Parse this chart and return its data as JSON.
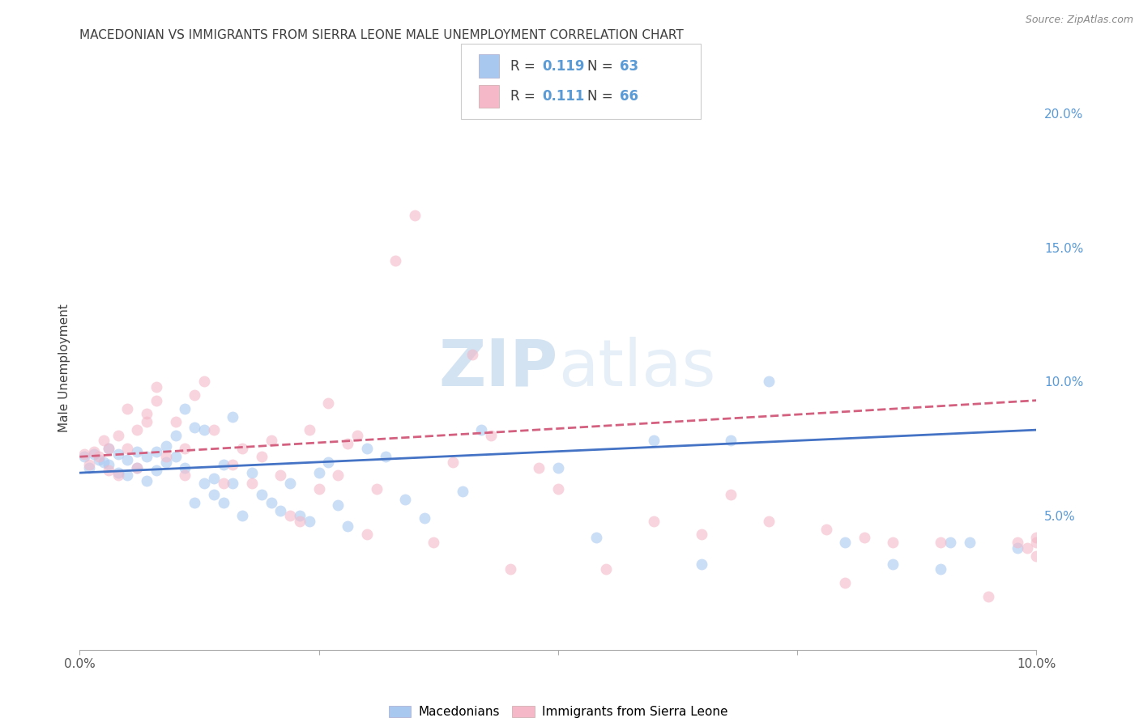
{
  "title": "MACEDONIAN VS IMMIGRANTS FROM SIERRA LEONE MALE UNEMPLOYMENT CORRELATION CHART",
  "source": "Source: ZipAtlas.com",
  "ylabel": "Male Unemployment",
  "watermark_zip": "ZIP",
  "watermark_atlas": "atlas",
  "xlim": [
    0.0,
    0.1
  ],
  "ylim": [
    0.0,
    0.21
  ],
  "legend_r1": "R = ",
  "legend_v1": "0.119",
  "legend_n1_label": "N = ",
  "legend_n1": "63",
  "legend_r2": "R = ",
  "legend_v2": "0.111",
  "legend_n2_label": "N = ",
  "legend_n2": "66",
  "blue_color": "#a8c8f0",
  "pink_color": "#f4b8c8",
  "blue_line_color": "#4472c4",
  "pink_line_color": "#d46080",
  "title_color": "#404040",
  "right_axis_color": "#5b9bd5",
  "legend_text_color": "#5b9bd5",
  "legend_label_color": "#404040",
  "background_color": "#ffffff",
  "grid_color": "#e0e0e0",
  "marker_size": 100,
  "marker_alpha": 0.6,
  "blue_scatter_x": [
    0.0005,
    0.001,
    0.0015,
    0.002,
    0.0025,
    0.003,
    0.003,
    0.004,
    0.004,
    0.005,
    0.005,
    0.006,
    0.006,
    0.007,
    0.007,
    0.008,
    0.008,
    0.009,
    0.009,
    0.01,
    0.01,
    0.011,
    0.011,
    0.012,
    0.012,
    0.013,
    0.013,
    0.014,
    0.014,
    0.015,
    0.015,
    0.016,
    0.016,
    0.017,
    0.018,
    0.019,
    0.02,
    0.021,
    0.022,
    0.023,
    0.024,
    0.025,
    0.026,
    0.027,
    0.028,
    0.03,
    0.032,
    0.034,
    0.036,
    0.04,
    0.042,
    0.05,
    0.054,
    0.06,
    0.065,
    0.068,
    0.072,
    0.08,
    0.085,
    0.09,
    0.091,
    0.093,
    0.098
  ],
  "blue_scatter_y": [
    0.072,
    0.068,
    0.073,
    0.071,
    0.07,
    0.069,
    0.075,
    0.066,
    0.073,
    0.065,
    0.071,
    0.068,
    0.074,
    0.063,
    0.072,
    0.067,
    0.074,
    0.07,
    0.076,
    0.072,
    0.08,
    0.09,
    0.068,
    0.083,
    0.055,
    0.062,
    0.082,
    0.058,
    0.064,
    0.069,
    0.055,
    0.087,
    0.062,
    0.05,
    0.066,
    0.058,
    0.055,
    0.052,
    0.062,
    0.05,
    0.048,
    0.066,
    0.07,
    0.054,
    0.046,
    0.075,
    0.072,
    0.056,
    0.049,
    0.059,
    0.082,
    0.068,
    0.042,
    0.078,
    0.032,
    0.078,
    0.1,
    0.04,
    0.032,
    0.03,
    0.04,
    0.04,
    0.038
  ],
  "pink_scatter_x": [
    0.0005,
    0.001,
    0.0015,
    0.002,
    0.0025,
    0.003,
    0.003,
    0.004,
    0.004,
    0.005,
    0.005,
    0.006,
    0.006,
    0.007,
    0.007,
    0.008,
    0.008,
    0.009,
    0.01,
    0.011,
    0.011,
    0.012,
    0.013,
    0.014,
    0.015,
    0.016,
    0.017,
    0.018,
    0.019,
    0.02,
    0.021,
    0.022,
    0.023,
    0.024,
    0.025,
    0.026,
    0.027,
    0.028,
    0.029,
    0.03,
    0.031,
    0.033,
    0.035,
    0.037,
    0.039,
    0.041,
    0.043,
    0.045,
    0.048,
    0.05,
    0.055,
    0.06,
    0.065,
    0.068,
    0.072,
    0.078,
    0.08,
    0.082,
    0.085,
    0.09,
    0.095,
    0.098,
    0.099,
    0.1,
    0.1,
    0.1
  ],
  "pink_scatter_y": [
    0.073,
    0.069,
    0.074,
    0.072,
    0.078,
    0.067,
    0.075,
    0.065,
    0.08,
    0.075,
    0.09,
    0.068,
    0.082,
    0.088,
    0.085,
    0.093,
    0.098,
    0.072,
    0.085,
    0.065,
    0.075,
    0.095,
    0.1,
    0.082,
    0.062,
    0.069,
    0.075,
    0.062,
    0.072,
    0.078,
    0.065,
    0.05,
    0.048,
    0.082,
    0.06,
    0.092,
    0.065,
    0.077,
    0.08,
    0.043,
    0.06,
    0.145,
    0.162,
    0.04,
    0.07,
    0.11,
    0.08,
    0.03,
    0.068,
    0.06,
    0.03,
    0.048,
    0.043,
    0.058,
    0.048,
    0.045,
    0.025,
    0.042,
    0.04,
    0.04,
    0.02,
    0.04,
    0.038,
    0.042,
    0.04,
    0.035
  ],
  "blue_trend_x0": 0.0,
  "blue_trend_x1": 0.1,
  "blue_trend_y0": 0.066,
  "blue_trend_y1": 0.082,
  "pink_trend_x0": 0.0,
  "pink_trend_x1": 0.1,
  "pink_trend_y0": 0.072,
  "pink_trend_y1": 0.093
}
